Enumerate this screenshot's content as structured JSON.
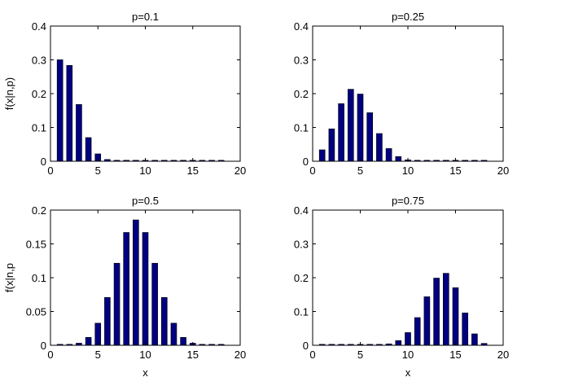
{
  "chart_data": [
    {
      "type": "bar",
      "title": "p=0.1",
      "xlabel": "",
      "ylabel": "f(x|n,p)",
      "xlim": [
        0,
        20
      ],
      "ylim": [
        0,
        0.4
      ],
      "xticks": [
        "0",
        "5",
        "10",
        "15",
        "20"
      ],
      "yticks": [
        "0",
        "0.1",
        "0.2",
        "0.3",
        "0.4"
      ],
      "x": [
        1,
        2,
        3,
        4,
        5,
        6,
        7,
        8,
        9,
        10,
        11,
        12,
        13,
        14,
        15,
        16,
        17,
        18
      ],
      "values": [
        0.3002,
        0.2835,
        0.168,
        0.07,
        0.0218,
        0.0052,
        0.001,
        0.0002,
        0,
        0,
        0,
        0,
        0,
        0,
        0,
        0,
        0,
        0
      ],
      "color": "#000080",
      "grid": false
    },
    {
      "type": "bar",
      "title": "p=0.25",
      "xlabel": "",
      "ylabel": "",
      "xlim": [
        0,
        20
      ],
      "ylim": [
        0,
        0.4
      ],
      "xticks": [
        "0",
        "5",
        "10",
        "15",
        "20"
      ],
      "yticks": [
        "0",
        "0.1",
        "0.2",
        "0.3",
        "0.4"
      ],
      "x": [
        1,
        2,
        3,
        4,
        5,
        6,
        7,
        8,
        9,
        10,
        11,
        12,
        13,
        14,
        15,
        16,
        17,
        18
      ],
      "values": [
        0.0338,
        0.0958,
        0.1704,
        0.213,
        0.1988,
        0.1436,
        0.082,
        0.0376,
        0.0139,
        0.0042,
        0.001,
        0.0002,
        0,
        0,
        0,
        0,
        0,
        0
      ],
      "color": "#000080",
      "grid": false
    },
    {
      "type": "bar",
      "title": "p=0.5",
      "xlabel": "x",
      "ylabel": "f(x|n,p",
      "xlim": [
        0,
        20
      ],
      "ylim": [
        0,
        0.2
      ],
      "xticks": [
        "0",
        "5",
        "10",
        "15",
        "20"
      ],
      "yticks": [
        "0",
        "0.05",
        "0.1",
        "0.15",
        "0.2"
      ],
      "x": [
        1,
        2,
        3,
        4,
        5,
        6,
        7,
        8,
        9,
        10,
        11,
        12,
        13,
        14,
        15,
        16,
        17,
        18
      ],
      "values": [
        0.0001,
        0.0006,
        0.0031,
        0.0117,
        0.0327,
        0.0708,
        0.1214,
        0.1669,
        0.1855,
        0.1669,
        0.1214,
        0.0708,
        0.0327,
        0.0117,
        0.0031,
        0.0006,
        0.0001,
        0
      ],
      "color": "#000080",
      "grid": false
    },
    {
      "type": "bar",
      "title": "p=0.75",
      "xlabel": "x",
      "ylabel": "",
      "xlim": [
        0,
        20
      ],
      "ylim": [
        0,
        0.4
      ],
      "xticks": [
        "0",
        "5",
        "10",
        "15",
        "20"
      ],
      "yticks": [
        "0",
        "0.1",
        "0.2",
        "0.3",
        "0.4"
      ],
      "x": [
        1,
        2,
        3,
        4,
        5,
        6,
        7,
        8,
        9,
        10,
        11,
        12,
        13,
        14,
        15,
        16,
        17,
        18
      ],
      "values": [
        0,
        0,
        0,
        0,
        0,
        0.0002,
        0.001,
        0.0042,
        0.0139,
        0.0376,
        0.082,
        0.1436,
        0.1988,
        0.213,
        0.1704,
        0.0958,
        0.0338,
        0.0056
      ],
      "color": "#000080",
      "grid": false
    }
  ]
}
